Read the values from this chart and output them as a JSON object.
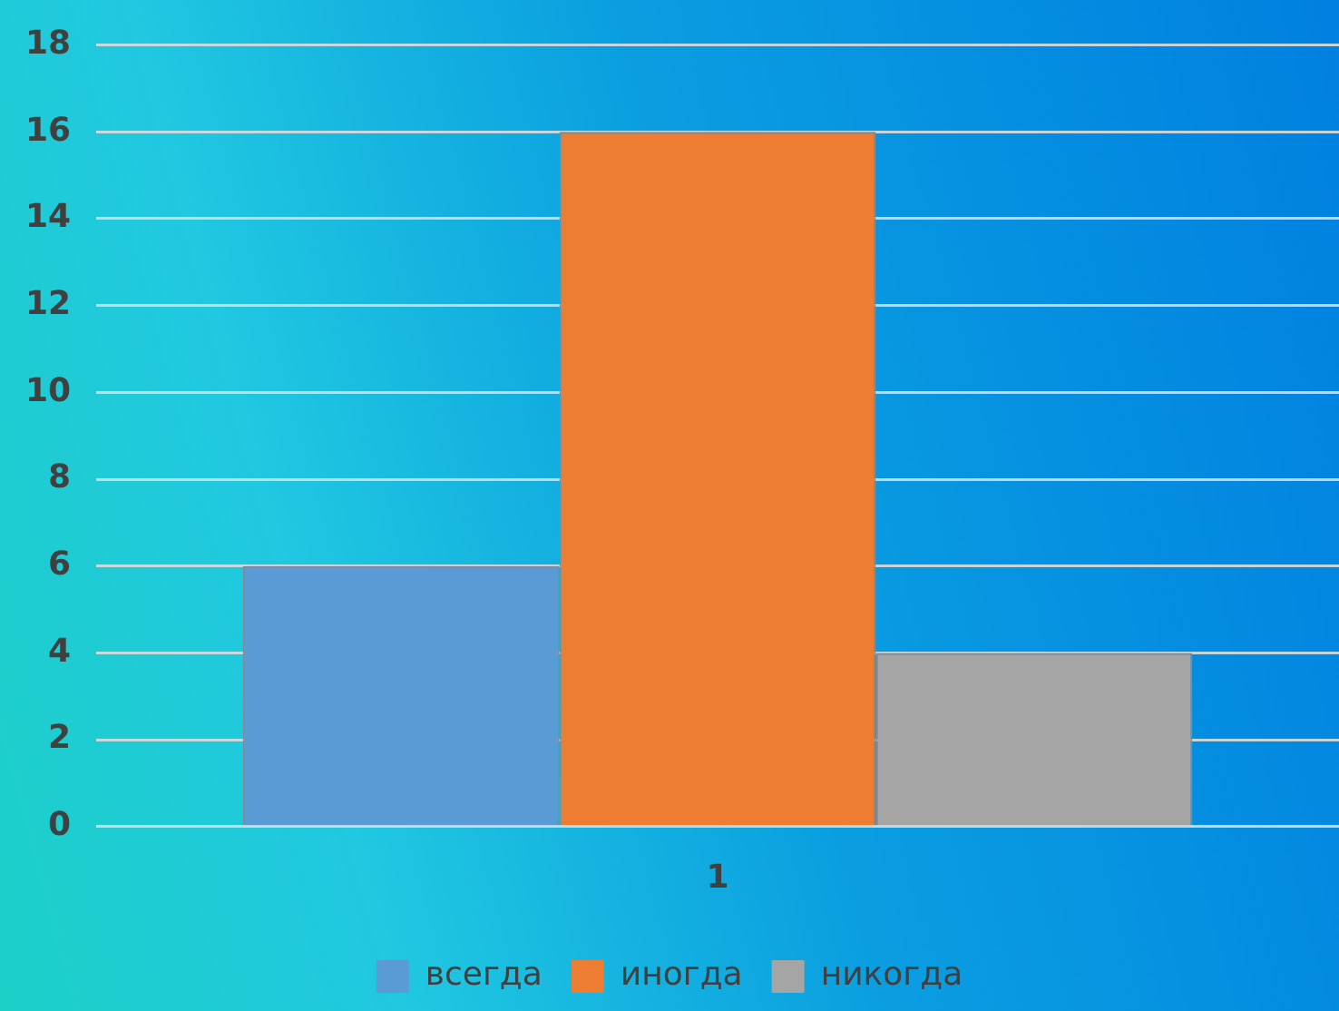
{
  "chart_data": {
    "type": "bar",
    "categories": [
      "1"
    ],
    "series": [
      {
        "name": "всегда",
        "color": "#5b9bd5",
        "values": [
          6
        ]
      },
      {
        "name": "иногда",
        "color": "#ed7d31",
        "values": [
          16
        ]
      },
      {
        "name": "никогда",
        "color": "#a5a5a5",
        "values": [
          4
        ]
      }
    ],
    "ylim": [
      0,
      18
    ],
    "yticks": [
      0,
      2,
      4,
      6,
      8,
      10,
      12,
      14,
      16,
      18
    ],
    "grid": "y",
    "legend": "bottom"
  }
}
